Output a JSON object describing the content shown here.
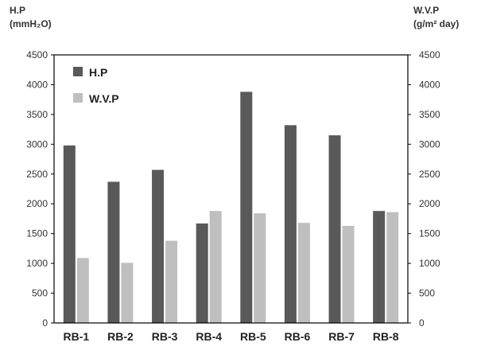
{
  "chart_data": {
    "type": "bar",
    "categories": [
      "RB-1",
      "RB-2",
      "RB-3",
      "RB-4",
      "RB-5",
      "RB-6",
      "RB-7",
      "RB-8"
    ],
    "series": [
      {
        "name": "H.P",
        "axis": "left",
        "color": "#595959",
        "values": [
          2980,
          2370,
          2570,
          1670,
          3880,
          3320,
          3150,
          1880
        ]
      },
      {
        "name": "W.V.P",
        "axis": "right",
        "color": "#bfbfbf",
        "values": [
          1090,
          1010,
          1380,
          1880,
          1840,
          1680,
          1630,
          1860
        ]
      }
    ],
    "left_axis": {
      "title_line1": "H.P",
      "title_line2": "(mmH₂O)",
      "ylim": [
        0,
        4500
      ],
      "ticks": [
        "0",
        "500",
        "1000",
        "1500",
        "2000",
        "2500",
        "3000",
        "3500",
        "4000",
        "4500"
      ]
    },
    "right_axis": {
      "title_line1": "W.V.P",
      "title_line2": "(g/m² day)",
      "ylim": [
        0,
        4500
      ],
      "ticks": [
        "0",
        "500",
        "1000",
        "1500",
        "2000",
        "2500",
        "3000",
        "3500",
        "4000",
        "4500"
      ]
    },
    "legend": "top-left",
    "grid": false
  }
}
